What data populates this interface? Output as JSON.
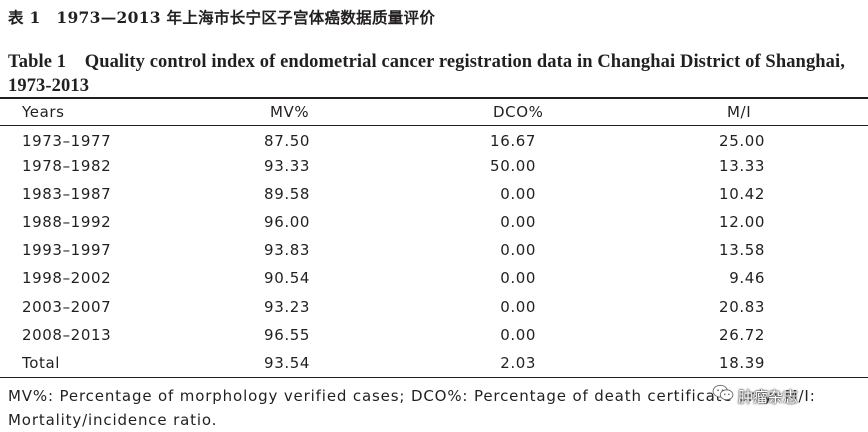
{
  "title_cn": "表 1　1973—2013 年上海市长宁区子宫体癌数据质量评价",
  "title_en": "Table 1　Quality control index of endometrial cancer registration data in Changhai District of Shanghai, 1973-2013",
  "table": {
    "headers": [
      "Years",
      "MV%",
      "DCO%",
      "M/I"
    ],
    "rows": [
      [
        "1973–1977",
        "87.50",
        "16.67",
        "25.00"
      ],
      [
        "1978–1982",
        "93.33",
        "50.00",
        "13.33"
      ],
      [
        "1983–1987",
        "89.58",
        "0.00",
        "10.42"
      ],
      [
        "1988–1992",
        "96.00",
        "0.00",
        "12.00"
      ],
      [
        "1993–1997",
        "93.83",
        "0.00",
        "13.58"
      ],
      [
        "1998–2002",
        "90.54",
        "0.00",
        "9.46"
      ],
      [
        "2003–2007",
        "93.23",
        "0.00",
        "20.83"
      ],
      [
        "2008–2013",
        "96.55",
        "0.00",
        "26.72"
      ],
      [
        "Total",
        "93.54",
        "2.03",
        "18.39"
      ]
    ]
  },
  "footnote": "MV%: Percentage of morphology verified cases; DCO%: Percentage of death certificate only; M/I: Mortality/incidence ratio.",
  "watermark": {
    "text": "肿瘤杂志",
    "icon": "wechat-icon"
  }
}
